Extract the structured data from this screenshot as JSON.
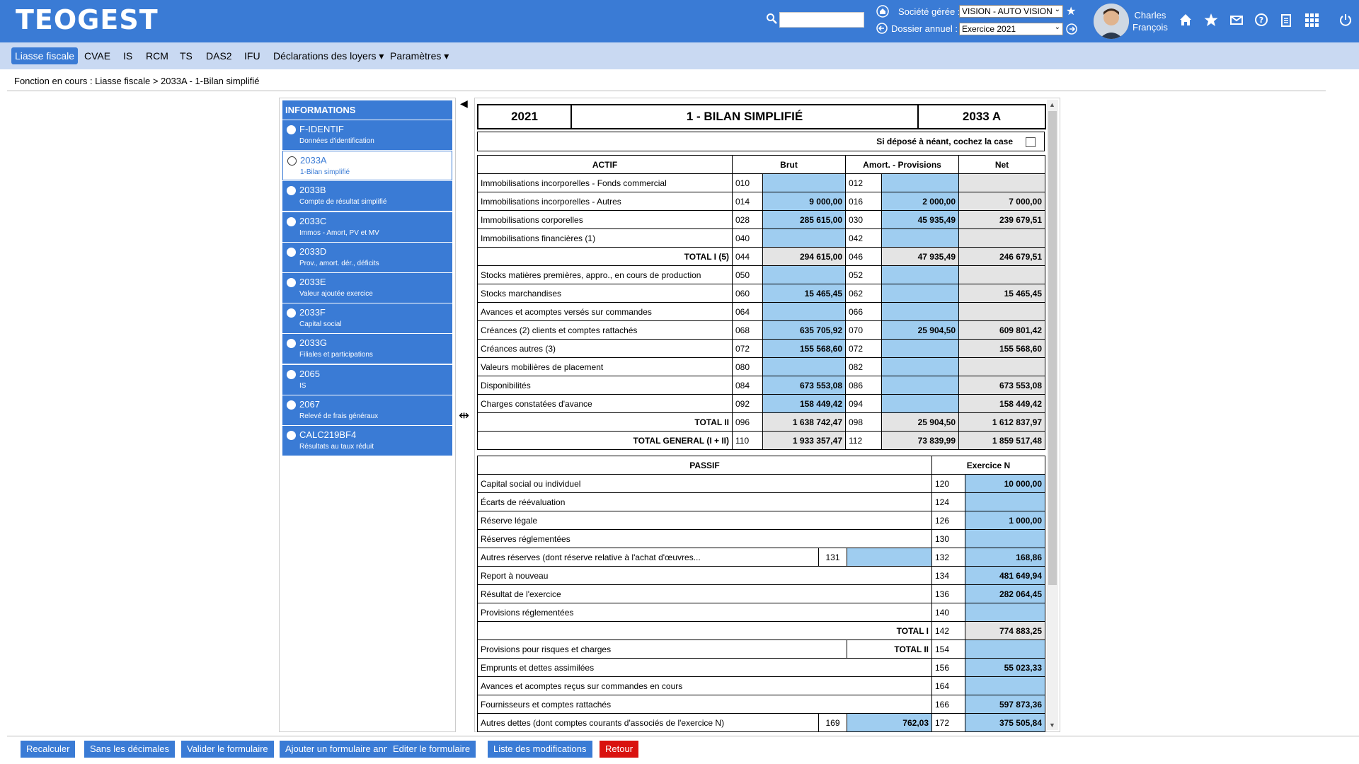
{
  "header": {
    "logo": "TEOGEST",
    "societe_label": "Société gérée :",
    "societe_value": "VISION - AUTO VISION",
    "dossier_label": "Dossier annuel :",
    "dossier_value": "Exercice 2021",
    "user_first": "Charles",
    "user_last": "François"
  },
  "nav": {
    "items": [
      "Liasse fiscale",
      "CVAE",
      "IS",
      "RCM",
      "TS",
      "DAS2",
      "IFU",
      "Déclarations des loyers",
      "Paramètres"
    ]
  },
  "breadcrumb": "Fonction en cours :  Liasse fiscale > 2033A - 1-Bilan simplifié",
  "sidebar": {
    "title": "INFORMATIONS",
    "items": [
      {
        "code": "F-IDENTIF",
        "desc": "Données d'identification"
      },
      {
        "code": "2033A",
        "desc": "1-Bilan simplifié"
      },
      {
        "code": "2033B",
        "desc": "Compte de résultat simplifié"
      },
      {
        "code": "2033C",
        "desc": "Immos - Amort, PV et MV"
      },
      {
        "code": "2033D",
        "desc": "Prov., amort. dér., déficits"
      },
      {
        "code": "2033E",
        "desc": "Valeur ajoutée exercice"
      },
      {
        "code": "2033F",
        "desc": "Capital social"
      },
      {
        "code": "2033G",
        "desc": "Filiales et participations"
      },
      {
        "code": "2065",
        "desc": "IS"
      },
      {
        "code": "2067",
        "desc": "Relevé de frais généraux"
      },
      {
        "code": "CALC219BF4",
        "desc": "Résultats au taux réduit"
      }
    ]
  },
  "form": {
    "year": "2021",
    "title": "1 - BILAN SIMPLIFIÉ",
    "code": "2033 A",
    "neant": "Si déposé à néant, cochez la case",
    "actif_headers": [
      "ACTIF",
      "Brut",
      "Amort. - Provisions",
      "Net"
    ],
    "actif_rows": [
      [
        "Immobilisations incorporelles - Fonds commercial",
        "010",
        "",
        "012",
        "",
        ""
      ],
      [
        "Immobilisations incorporelles - Autres",
        "014",
        "9 000,00",
        "016",
        "2 000,00",
        "7 000,00"
      ],
      [
        "Immobilisations corporelles",
        "028",
        "285 615,00",
        "030",
        "45 935,49",
        "239 679,51"
      ],
      [
        "Immobilisations financières (1)",
        "040",
        "",
        "042",
        "",
        ""
      ],
      [
        "TOTAL I (5)",
        "044",
        "294 615,00",
        "046",
        "47 935,49",
        "246 679,51"
      ],
      [
        "Stocks matières premières, appro., en cours de production",
        "050",
        "",
        "052",
        "",
        ""
      ],
      [
        "Stocks marchandises",
        "060",
        "15 465,45",
        "062",
        "",
        "15 465,45"
      ],
      [
        "Avances et acomptes versés sur commandes",
        "064",
        "",
        "066",
        "",
        ""
      ],
      [
        "Créances (2) clients et comptes rattachés",
        "068",
        "635 705,92",
        "070",
        "25 904,50",
        "609 801,42"
      ],
      [
        "Créances autres (3)",
        "072",
        "155 568,60",
        "072",
        "",
        "155 568,60"
      ],
      [
        "Valeurs mobilières de placement",
        "080",
        "",
        "082",
        "",
        ""
      ],
      [
        "Disponibilités",
        "084",
        "673 553,08",
        "086",
        "",
        "673 553,08"
      ],
      [
        "Charges constatées d'avance",
        "092",
        "158 449,42",
        "094",
        "",
        "158 449,42"
      ],
      [
        "TOTAL II",
        "096",
        "1 638 742,47",
        "098",
        "25 904,50",
        "1 612 837,97"
      ],
      [
        "TOTAL GENERAL (I + II)",
        "110",
        "1 933 357,47",
        "112",
        "73 839,99",
        "1 859 517,48"
      ]
    ],
    "passif_headers": [
      "PASSIF",
      "Exercice N"
    ],
    "passif_rows": [
      [
        "Capital social ou individuel",
        "120",
        "10 000,00"
      ],
      [
        "Écarts de réévaluation",
        "124",
        ""
      ],
      [
        "Réserve légale",
        "126",
        "1 000,00"
      ],
      [
        "Réserves réglementées",
        "130",
        ""
      ],
      [
        "Autres réserves (dont réserve relative à l'achat d'œuvres...",
        "132",
        "168,86",
        "131",
        ""
      ],
      [
        "Report à nouveau",
        "134",
        "481 649,94"
      ],
      [
        "Résultat de l'exercice",
        "136",
        "282 064,45"
      ],
      [
        "Provisions réglementées",
        "140",
        ""
      ],
      [
        "TOTAL I",
        "142",
        "774 883,25"
      ],
      [
        "Provisions pour risques et charges",
        "154",
        "",
        "TOTAL II"
      ],
      [
        "Emprunts et dettes assimilées",
        "156",
        "55 023,33"
      ],
      [
        "Avances et acomptes reçus sur commandes en cours",
        "164",
        ""
      ],
      [
        "Fournisseurs et comptes rattachés",
        "166",
        "597 873,36"
      ],
      [
        "Autres dettes (dont comptes courants d'associés de l'exercice N)",
        "172",
        "375 505,84",
        "169",
        "762,03"
      ]
    ]
  },
  "buttons": [
    "Recalculer",
    "Sans les décimales",
    "Valider le formulaire",
    "Ajouter un formulaire annexe",
    "Editer le formulaire",
    "Liste des modifications",
    "Retour"
  ]
}
